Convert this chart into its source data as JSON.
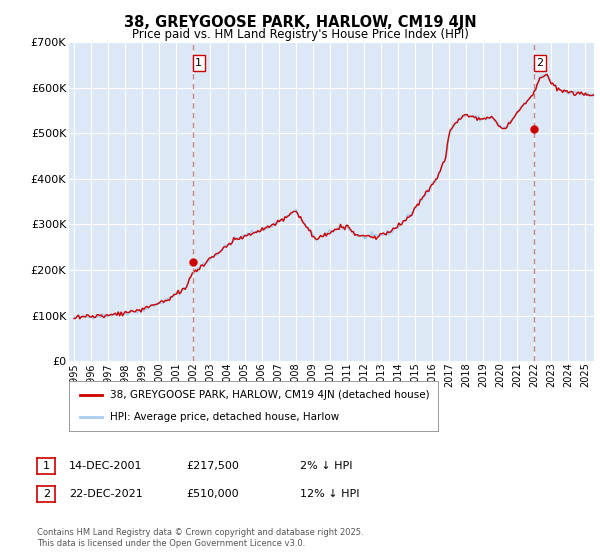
{
  "title": "38, GREYGOOSE PARK, HARLOW, CM19 4JN",
  "subtitle": "Price paid vs. HM Land Registry's House Price Index (HPI)",
  "legend_entry1": "38, GREYGOOSE PARK, HARLOW, CM19 4JN (detached house)",
  "legend_entry2": "HPI: Average price, detached house, Harlow",
  "annotation1_date": "14-DEC-2001",
  "annotation1_price": "£217,500",
  "annotation1_hpi": "2% ↓ HPI",
  "annotation1_year": 2001.96,
  "annotation1_value": 217500,
  "annotation2_date": "22-DEC-2021",
  "annotation2_price": "£510,000",
  "annotation2_hpi": "12% ↓ HPI",
  "annotation2_year": 2021.97,
  "annotation2_value": 510000,
  "footer": "Contains HM Land Registry data © Crown copyright and database right 2025.\nThis data is licensed under the Open Government Licence v3.0.",
  "price_color": "#cc0000",
  "hpi_color": "#aaccee",
  "background_chart": "#dce8f5",
  "grid_color": "#ffffff",
  "vline_color": "#cc8888",
  "ylim": [
    0,
    700000
  ],
  "xlim_start": 1994.7,
  "xlim_end": 2025.5,
  "yticks": [
    0,
    100000,
    200000,
    300000,
    400000,
    500000,
    600000,
    700000
  ],
  "ytick_labels": [
    "£0",
    "£100K",
    "£200K",
    "£300K",
    "£400K",
    "£500K",
    "£600K",
    "£700K"
  ],
  "xticks": [
    1995,
    1996,
    1997,
    1998,
    1999,
    2000,
    2001,
    2002,
    2003,
    2004,
    2005,
    2006,
    2007,
    2008,
    2009,
    2010,
    2011,
    2012,
    2013,
    2014,
    2015,
    2016,
    2017,
    2018,
    2019,
    2020,
    2021,
    2022,
    2023,
    2024,
    2025
  ]
}
